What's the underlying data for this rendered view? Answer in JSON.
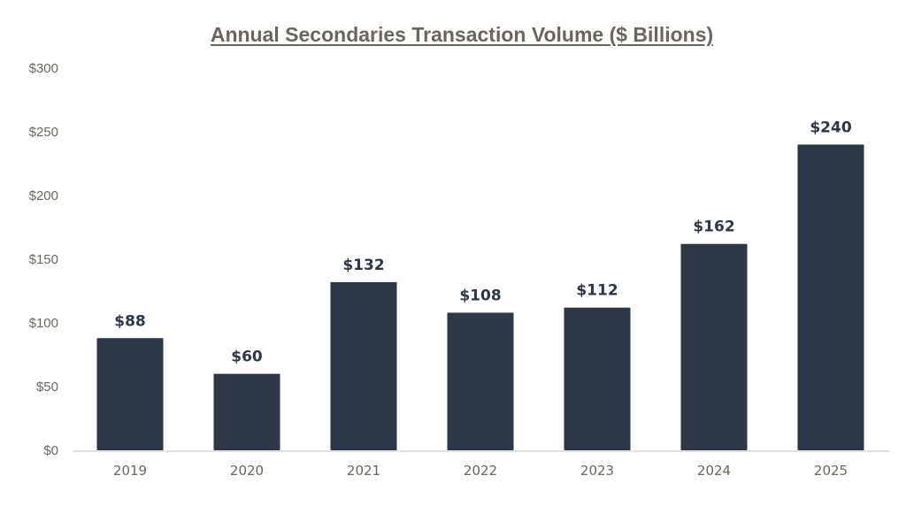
{
  "chart_data": {
    "type": "bar",
    "title": "Annual Secondaries Transaction Volume ($ Billions)",
    "categories": [
      "2019",
      "2020",
      "2021",
      "2022",
      "2023",
      "2024",
      "2025"
    ],
    "values": [
      88,
      60,
      132,
      108,
      112,
      162,
      240
    ],
    "data_labels": [
      "$88",
      "$60",
      "$132",
      "$108",
      "$112",
      "$162",
      "$240"
    ],
    "ylim": [
      0,
      300
    ],
    "yticks": [
      0,
      50,
      100,
      150,
      200,
      250,
      300
    ],
    "ytick_labels": [
      "$0",
      "$50",
      "$100",
      "$150",
      "$200",
      "$250",
      "$300"
    ],
    "xlabel": "",
    "ylabel": "",
    "grid": false,
    "colors": {
      "bar": "#2e3746",
      "title": "#6b665d",
      "axis_text": "#6b665d",
      "axis_line": "#e2e2e2",
      "label": "#2e3746"
    }
  }
}
